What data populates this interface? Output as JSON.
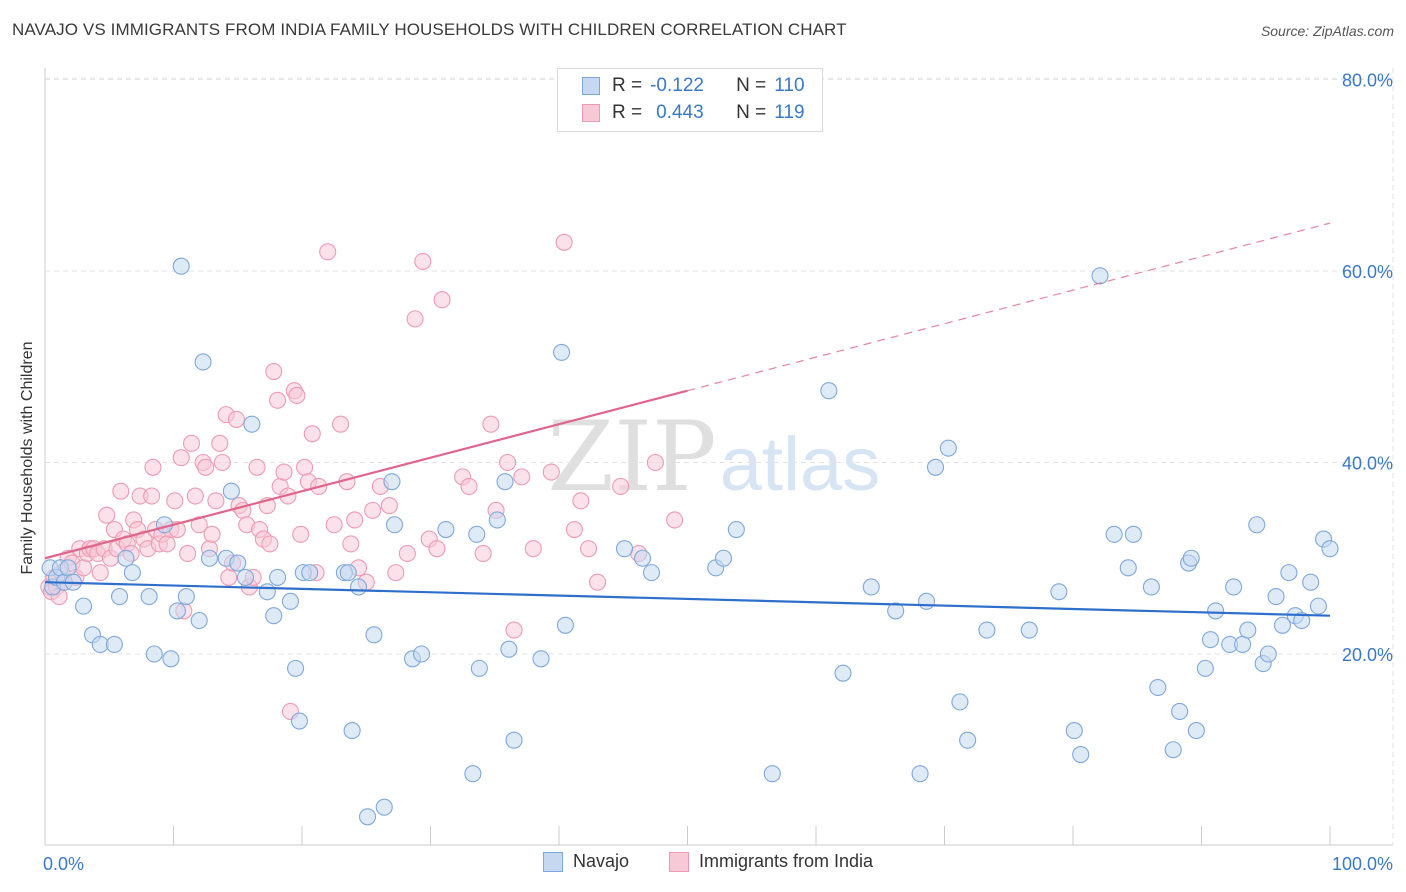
{
  "header": {
    "title": "NAVAJO VS IMMIGRANTS FROM INDIA FAMILY HOUSEHOLDS WITH CHILDREN CORRELATION CHART",
    "source": "Source: ZipAtlas.com"
  },
  "watermark": {
    "zip": "ZIP",
    "atlas": "atlas"
  },
  "legend": {
    "rows": [
      {
        "r_label": "R =",
        "r_value": "-0.122",
        "n_label": "N =",
        "n_value": "110"
      },
      {
        "r_label": "R =",
        "r_value": "0.443",
        "n_label": "N =",
        "n_value": "119"
      }
    ]
  },
  "colors": {
    "navajo_fill": "#c5d8f0",
    "navajo_stroke": "#7ea8dc",
    "navajo_line": "#2f6fcc",
    "india_fill": "#f7c9d7",
    "india_stroke": "#ef9ab4",
    "india_line": "#e0658d",
    "tick_label": "#3a78c8",
    "grid": "#e3e3e3"
  },
  "chart_data": {
    "type": "scatter",
    "title": "NAVAJO VS IMMIGRANTS FROM INDIA FAMILY HOUSEHOLDS WITH CHILDREN CORRELATION CHART",
    "xlabel": "",
    "ylabel": "Family Households with Children",
    "xlim": [
      0,
      100
    ],
    "ylim": [
      0,
      82
    ],
    "x_tick_labels": [
      "0.0%",
      "100.0%"
    ],
    "y_ticks": [
      20,
      40,
      60,
      80
    ],
    "y_tick_labels": [
      "20.0%",
      "40.0%",
      "60.0%",
      "80.0%"
    ],
    "grid": true,
    "legend_position": "top-center",
    "series": [
      {
        "name": "Navajo",
        "r": -0.122,
        "n": 110,
        "trend": {
          "x": [
            0,
            100
          ],
          "y": [
            27.5,
            24.0
          ]
        },
        "points": [
          [
            0.4,
            29
          ],
          [
            0.6,
            27
          ],
          [
            0.9,
            28
          ],
          [
            1.2,
            29
          ],
          [
            1.5,
            27.5
          ],
          [
            1.8,
            29
          ],
          [
            2.2,
            27.5
          ],
          [
            3.0,
            25
          ],
          [
            3.7,
            22
          ],
          [
            4.3,
            21
          ],
          [
            5.4,
            21
          ],
          [
            5.8,
            26
          ],
          [
            6.3,
            30
          ],
          [
            6.8,
            28.5
          ],
          [
            8.1,
            26
          ],
          [
            8.5,
            20
          ],
          [
            9.3,
            33.5
          ],
          [
            9.8,
            19.5
          ],
          [
            10.3,
            24.5
          ],
          [
            10.6,
            60.5
          ],
          [
            11.0,
            26
          ],
          [
            12.0,
            23.5
          ],
          [
            12.8,
            30
          ],
          [
            12.3,
            50.5
          ],
          [
            14.1,
            30
          ],
          [
            14.5,
            37
          ],
          [
            15.0,
            29.5
          ],
          [
            15.6,
            28
          ],
          [
            16.1,
            44
          ],
          [
            17.3,
            26.5
          ],
          [
            17.8,
            24
          ],
          [
            18.1,
            28
          ],
          [
            19.1,
            25.5
          ],
          [
            19.5,
            18.5
          ],
          [
            19.8,
            13
          ],
          [
            20.1,
            28.5
          ],
          [
            20.6,
            28.5
          ],
          [
            23.3,
            28.5
          ],
          [
            23.6,
            28.5
          ],
          [
            23.9,
            12
          ],
          [
            24.4,
            27
          ],
          [
            25.1,
            3
          ],
          [
            25.6,
            22
          ],
          [
            26.4,
            4
          ],
          [
            27.0,
            38
          ],
          [
            27.2,
            33.5
          ],
          [
            28.6,
            19.5
          ],
          [
            29.3,
            20
          ],
          [
            31.2,
            33
          ],
          [
            33.3,
            7.5
          ],
          [
            33.6,
            32.5
          ],
          [
            33.8,
            18.5
          ],
          [
            35.2,
            34
          ],
          [
            35.8,
            38
          ],
          [
            36.1,
            20.5
          ],
          [
            36.5,
            11
          ],
          [
            38.6,
            19.5
          ],
          [
            40.2,
            51.5
          ],
          [
            40.5,
            23
          ],
          [
            45.1,
            31
          ],
          [
            46.5,
            30
          ],
          [
            47.2,
            28.5
          ],
          [
            52.2,
            29
          ],
          [
            52.8,
            30
          ],
          [
            53.8,
            33
          ],
          [
            56.6,
            7.5
          ],
          [
            61.0,
            47.5
          ],
          [
            62.1,
            18
          ],
          [
            64.3,
            27
          ],
          [
            66.2,
            24.5
          ],
          [
            68.1,
            7.5
          ],
          [
            68.6,
            25.5
          ],
          [
            69.3,
            39.5
          ],
          [
            70.3,
            41.5
          ],
          [
            71.2,
            15
          ],
          [
            71.8,
            11
          ],
          [
            73.3,
            22.5
          ],
          [
            76.6,
            22.5
          ],
          [
            78.9,
            26.5
          ],
          [
            80.1,
            12
          ],
          [
            80.6,
            9.5
          ],
          [
            82.1,
            59.5
          ],
          [
            83.2,
            32.5
          ],
          [
            84.3,
            29
          ],
          [
            84.7,
            32.5
          ],
          [
            86.1,
            27
          ],
          [
            86.6,
            16.5
          ],
          [
            87.8,
            10
          ],
          [
            88.3,
            14
          ],
          [
            89.0,
            29.5
          ],
          [
            89.2,
            30
          ],
          [
            89.6,
            12
          ],
          [
            90.3,
            18.5
          ],
          [
            90.7,
            21.5
          ],
          [
            91.1,
            24.5
          ],
          [
            92.2,
            21
          ],
          [
            92.5,
            27
          ],
          [
            93.2,
            21
          ],
          [
            93.6,
            22.5
          ],
          [
            94.3,
            33.5
          ],
          [
            94.8,
            19
          ],
          [
            95.2,
            20
          ],
          [
            95.8,
            26
          ],
          [
            96.3,
            23
          ],
          [
            96.8,
            28.5
          ],
          [
            97.3,
            24
          ],
          [
            97.8,
            23.5
          ],
          [
            98.5,
            27.5
          ],
          [
            99.1,
            25
          ],
          [
            99.5,
            32
          ],
          [
            100.0,
            31
          ]
        ]
      },
      {
        "name": "Immigrants from India",
        "r": 0.443,
        "n": 119,
        "trend": {
          "x": [
            0,
            50
          ],
          "y": [
            30,
            47.5
          ]
        },
        "trend_dashed": {
          "x": [
            50,
            100
          ],
          "y": [
            47.5,
            65
          ]
        },
        "points": [
          [
            0.3,
            27
          ],
          [
            0.5,
            26.5
          ],
          [
            0.7,
            28
          ],
          [
            0.9,
            27
          ],
          [
            1.1,
            26
          ],
          [
            1.3,
            28.5
          ],
          [
            1.5,
            27.5
          ],
          [
            1.8,
            30
          ],
          [
            2.1,
            29.5
          ],
          [
            2.4,
            28
          ],
          [
            2.7,
            31
          ],
          [
            3.0,
            29
          ],
          [
            3.3,
            30.5
          ],
          [
            3.5,
            31
          ],
          [
            3.8,
            31
          ],
          [
            4.1,
            30.5
          ],
          [
            4.3,
            28.5
          ],
          [
            4.6,
            31
          ],
          [
            4.8,
            34.5
          ],
          [
            5.1,
            30
          ],
          [
            5.4,
            33
          ],
          [
            5.6,
            31
          ],
          [
            5.9,
            37
          ],
          [
            6.1,
            32
          ],
          [
            6.4,
            31.5
          ],
          [
            6.7,
            30.5
          ],
          [
            6.9,
            34
          ],
          [
            7.2,
            33
          ],
          [
            7.4,
            36.5
          ],
          [
            7.7,
            32
          ],
          [
            8.0,
            31
          ],
          [
            8.3,
            36.5
          ],
          [
            8.4,
            39.5
          ],
          [
            8.6,
            33
          ],
          [
            8.9,
            31.5
          ],
          [
            9.1,
            32.5
          ],
          [
            9.5,
            31.5
          ],
          [
            9.8,
            33
          ],
          [
            10.1,
            36
          ],
          [
            10.3,
            33
          ],
          [
            10.6,
            40.5
          ],
          [
            10.8,
            24.5
          ],
          [
            11.1,
            30.5
          ],
          [
            11.4,
            42
          ],
          [
            11.7,
            36.5
          ],
          [
            12.0,
            33.5
          ],
          [
            12.3,
            40
          ],
          [
            12.5,
            39.5
          ],
          [
            12.8,
            31
          ],
          [
            13.0,
            32.5
          ],
          [
            13.3,
            36
          ],
          [
            13.6,
            42
          ],
          [
            13.8,
            40
          ],
          [
            14.1,
            45
          ],
          [
            14.3,
            28
          ],
          [
            14.6,
            29.5
          ],
          [
            14.9,
            44.5
          ],
          [
            15.1,
            35.5
          ],
          [
            15.4,
            35
          ],
          [
            15.7,
            33.5
          ],
          [
            15.9,
            27
          ],
          [
            16.2,
            28
          ],
          [
            16.5,
            39.5
          ],
          [
            16.7,
            33
          ],
          [
            17.0,
            32
          ],
          [
            17.3,
            35.5
          ],
          [
            17.5,
            31.5
          ],
          [
            17.8,
            49.5
          ],
          [
            18.1,
            46.5
          ],
          [
            18.3,
            37.5
          ],
          [
            18.6,
            39
          ],
          [
            18.9,
            36.5
          ],
          [
            19.1,
            14
          ],
          [
            19.4,
            47.5
          ],
          [
            19.6,
            47
          ],
          [
            19.9,
            32.5
          ],
          [
            20.2,
            39.5
          ],
          [
            20.5,
            38
          ],
          [
            20.8,
            43
          ],
          [
            21.1,
            28.5
          ],
          [
            21.3,
            37.5
          ],
          [
            22.0,
            62
          ],
          [
            22.5,
            33.5
          ],
          [
            23.0,
            44
          ],
          [
            23.5,
            38
          ],
          [
            23.8,
            31.5
          ],
          [
            24.1,
            34
          ],
          [
            24.4,
            29
          ],
          [
            25.0,
            27.5
          ],
          [
            25.5,
            35
          ],
          [
            26.1,
            37.5
          ],
          [
            26.8,
            35.5
          ],
          [
            27.3,
            28.5
          ],
          [
            28.2,
            30.5
          ],
          [
            28.8,
            55
          ],
          [
            29.4,
            61
          ],
          [
            29.9,
            32
          ],
          [
            30.5,
            31
          ],
          [
            30.9,
            57
          ],
          [
            32.5,
            38.5
          ],
          [
            33.0,
            37.5
          ],
          [
            34.1,
            30.5
          ],
          [
            34.7,
            44
          ],
          [
            35.1,
            35
          ],
          [
            36.0,
            40
          ],
          [
            36.5,
            22.5
          ],
          [
            37.1,
            38.5
          ],
          [
            38.0,
            31
          ],
          [
            39.4,
            39
          ],
          [
            40.4,
            63
          ],
          [
            41.2,
            33
          ],
          [
            41.7,
            36
          ],
          [
            42.3,
            31
          ],
          [
            43.0,
            27.5
          ],
          [
            44.8,
            37.5
          ],
          [
            46.2,
            30.5
          ],
          [
            47.5,
            40
          ],
          [
            49.0,
            34
          ]
        ]
      }
    ]
  },
  "bottom_legend": {
    "series1": "Navajo",
    "series2": "Immigrants from India"
  }
}
